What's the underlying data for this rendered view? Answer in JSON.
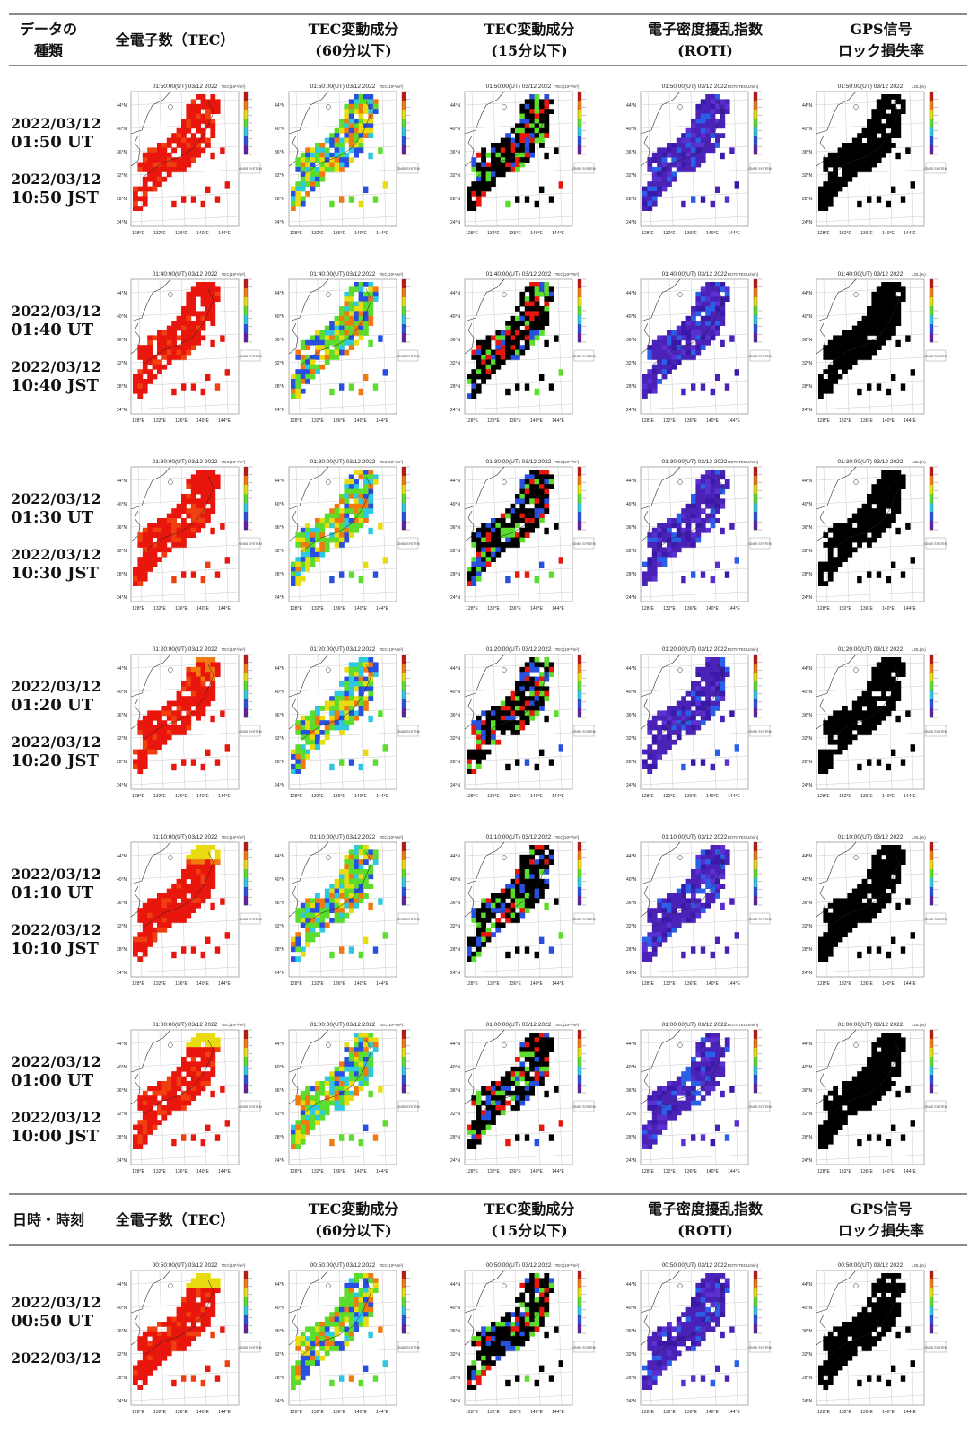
{
  "header": {
    "col0": [
      "データの",
      "種類"
    ],
    "col1": [
      "全電子数（TEC）"
    ],
    "col2": [
      "TEC変動成分",
      "(60分以下)"
    ],
    "col3": [
      "TEC変動成分",
      "(15分以下)"
    ],
    "col4": [
      "電子密度擾乱指数",
      "(ROTI)"
    ],
    "col5": [
      "GPS信号",
      "ロック損失率"
    ]
  },
  "header2": {
    "col0": [
      "日時・時刻"
    ],
    "col1": [
      "全電子数（TEC）"
    ],
    "col2": [
      "TEC変動成分",
      "(60分以下)"
    ],
    "col3": [
      "TEC変動成分",
      "(15分以下)"
    ],
    "col4": [
      "電子密度擾乱指数",
      "(ROTI)"
    ],
    "col5": [
      "GPS信号",
      "ロック損失率"
    ]
  },
  "rows": [
    {
      "ut_date": "2022/03/12",
      "ut_time": "01:50 UT",
      "jst_date": "2022/03/12",
      "jst_time": "10:50 JST",
      "map_title": "01:50:00(UT) 03/12 2022"
    },
    {
      "ut_date": "2022/03/12",
      "ut_time": "01:40 UT",
      "jst_date": "2022/03/12",
      "jst_time": "10:40 JST",
      "map_title": "01:40:00(UT) 03/12 2022"
    },
    {
      "ut_date": "2022/03/12",
      "ut_time": "01:30 UT",
      "jst_date": "2022/03/12",
      "jst_time": "10:30 JST",
      "map_title": "01:30:00(UT) 03/12 2022"
    },
    {
      "ut_date": "2022/03/12",
      "ut_time": "01:20 UT",
      "jst_date": "2022/03/12",
      "jst_time": "10:20 JST",
      "map_title": "01:20:00(UT) 03/12 2022"
    },
    {
      "ut_date": "2022/03/12",
      "ut_time": "01:10 UT",
      "jst_date": "2022/03/12",
      "jst_time": "10:10 JST",
      "map_title": "01:10:00(UT) 03/12 2022"
    },
    {
      "ut_date": "2022/03/12",
      "ut_time": "01:00 UT",
      "jst_date": "2022/03/12",
      "jst_time": "10:00 JST",
      "map_title": "01:00:00(UT) 03/12 2022"
    }
  ],
  "rows2": [
    {
      "ut_date": "2022/03/12",
      "ut_time": "00:50 UT",
      "jst_date": "2022/03/12",
      "map_title": "00:50:00(UT) 03/12 2022"
    }
  ],
  "map": {
    "lat_labels": [
      "44°N",
      "40°N",
      "36°N",
      "32°N",
      "28°N",
      "24°N"
    ],
    "lon_labels": [
      "128°E",
      "132°E",
      "136°E",
      "140°E",
      "144°E"
    ],
    "colorbar_units": [
      "TEC(10¹⁶/m²)",
      "TEC(10¹⁶/m²)",
      "TEC(10¹⁶/m²)",
      "ROTI(TECU/min)",
      "LOL(%)"
    ],
    "logo_text": "GNSS SYSTEM"
  },
  "colors": {
    "tec_high": "#e8160c",
    "tec_orange": "#f07a10",
    "tec_yellow": "#e8dc10",
    "detrend_green": "#5cdc2c",
    "roti_purple": "#4a22b8",
    "lol_black": "#000000",
    "rule_gray": "#8a8a8a"
  }
}
